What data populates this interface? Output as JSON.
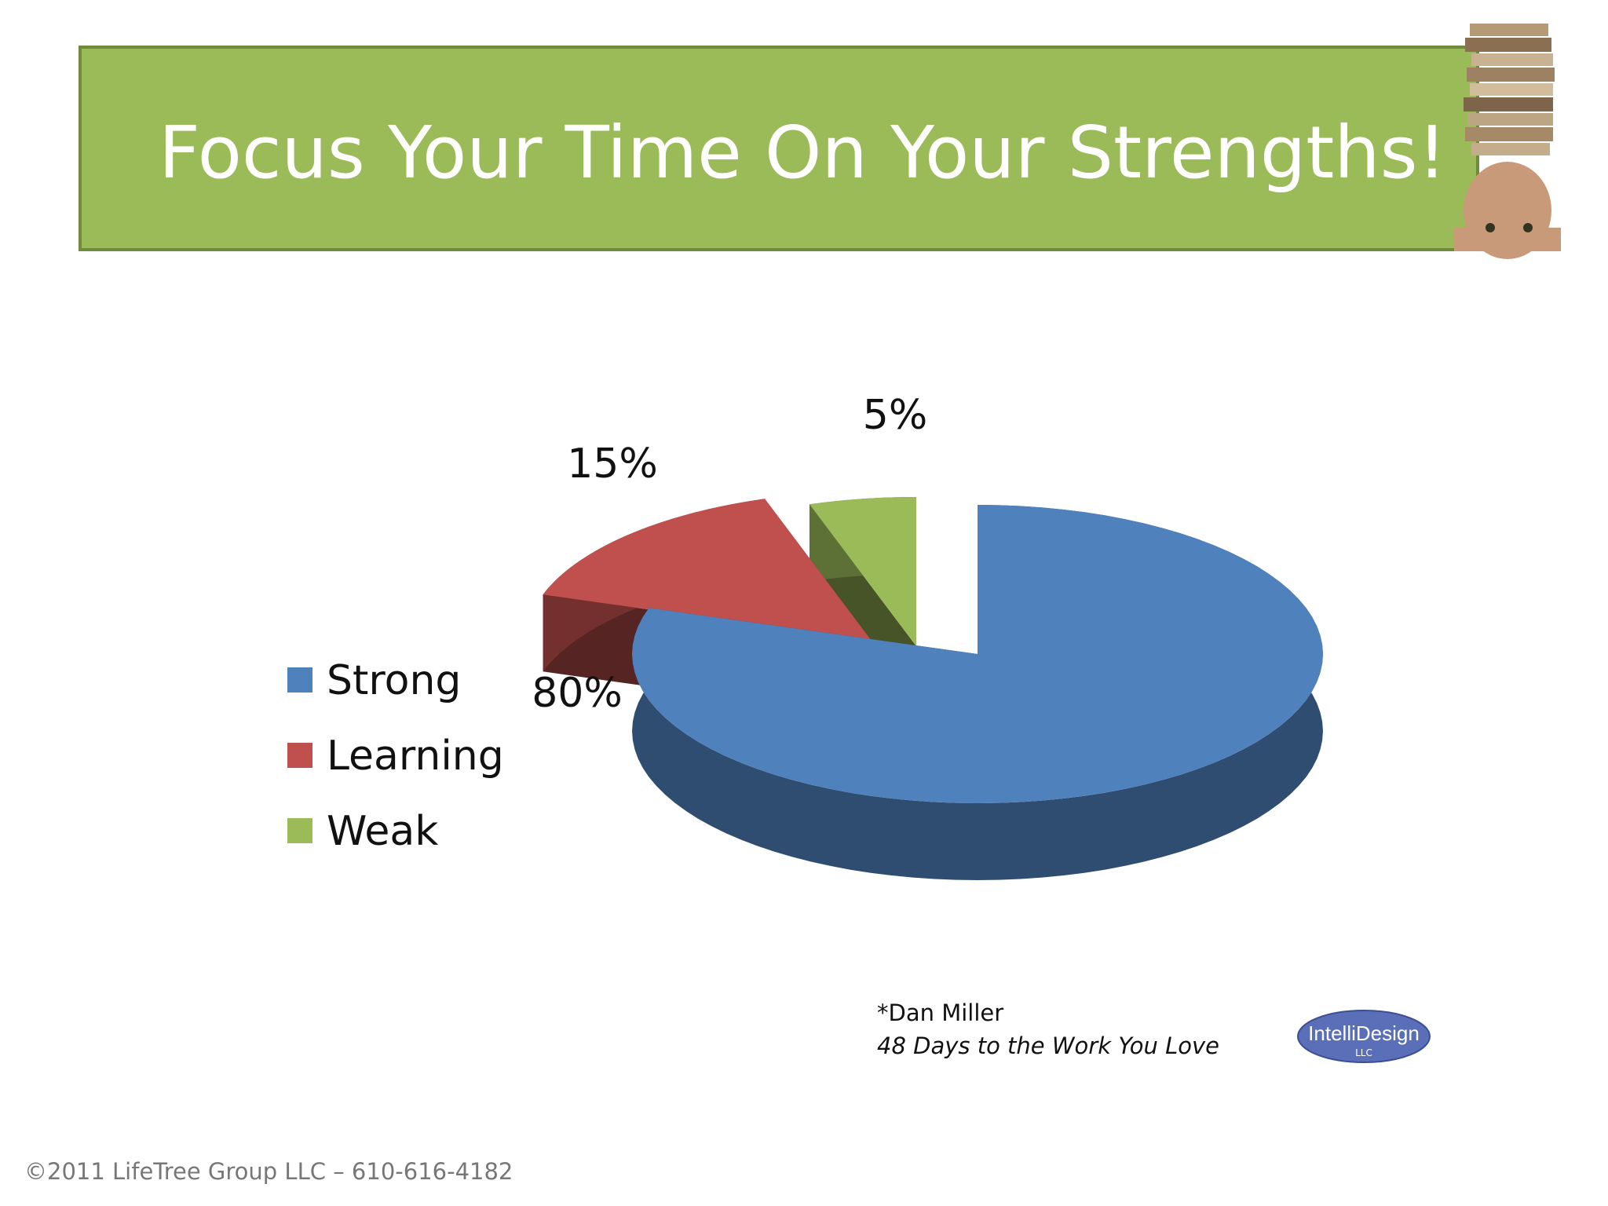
{
  "chart_data": {
    "type": "pie",
    "title": "Focus Your Time On Your Strengths!",
    "categories": [
      "Strong",
      "Learning",
      "Weak"
    ],
    "values": [
      80,
      15,
      5
    ],
    "value_labels": [
      "80%",
      "15%",
      "5%"
    ],
    "colors": [
      "#4f81bd",
      "#c0504d",
      "#9bbb59"
    ],
    "legend": "left"
  },
  "source": {
    "author": "*Dan Miller",
    "book": "48 Days to the Work You Love"
  },
  "logo": {
    "name": "IntelliDesign",
    "suffix": "LLC"
  },
  "footer": "©2011 LifeTree Group LLC – 610-616-4182"
}
